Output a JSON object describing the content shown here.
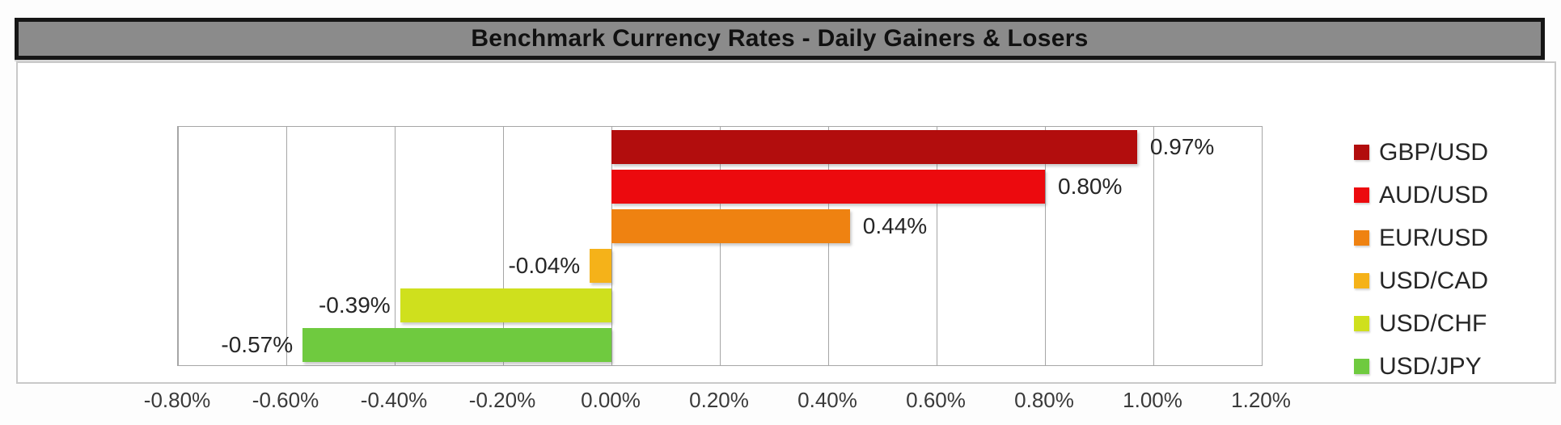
{
  "title": "Benchmark Currency Rates - Daily Gainers & Losers",
  "colors": {
    "title_bar_fill": "#8b8b8b",
    "title_bar_border": "#161616",
    "title_text": "#111111",
    "chart_box_border": "#c9c9c9",
    "plot_border": "#a6a6a6",
    "gridline": "#a6a6a6",
    "axis_label": "#3a3a3a",
    "data_label": "#262626",
    "legend_text": "#262626",
    "background": "#ffffff"
  },
  "chart_data": {
    "type": "bar",
    "orientation": "horizontal",
    "title": "Benchmark Currency Rates - Daily Gainers & Losers",
    "categories": [
      "GBP/USD",
      "AUD/USD",
      "EUR/USD",
      "USD/CAD",
      "USD/CHF",
      "USD/JPY"
    ],
    "values": [
      0.97,
      0.8,
      0.44,
      -0.04,
      -0.39,
      -0.57
    ],
    "value_labels": [
      "0.97%",
      "0.80%",
      "0.44%",
      "-0.04%",
      "-0.39%",
      "-0.57%"
    ],
    "series_colors": [
      "#b20d0d",
      "#ec0a0e",
      "#ef8211",
      "#f5b219",
      "#cfe01d",
      "#6fca3f"
    ],
    "unit": "%",
    "grid": true,
    "xlabel": "",
    "ylabel": "",
    "x_axis": {
      "min": -0.8,
      "max": 1.2,
      "step": 0.2,
      "tick_labels": [
        "-0.80%",
        "-0.60%",
        "-0.40%",
        "-0.20%",
        "0.00%",
        "0.20%",
        "0.40%",
        "0.60%",
        "0.80%",
        "1.00%",
        "1.20%"
      ]
    },
    "legend": {
      "position": "right",
      "entries": [
        "GBP/USD",
        "AUD/USD",
        "EUR/USD",
        "USD/CAD",
        "USD/CHF",
        "USD/JPY"
      ]
    }
  }
}
